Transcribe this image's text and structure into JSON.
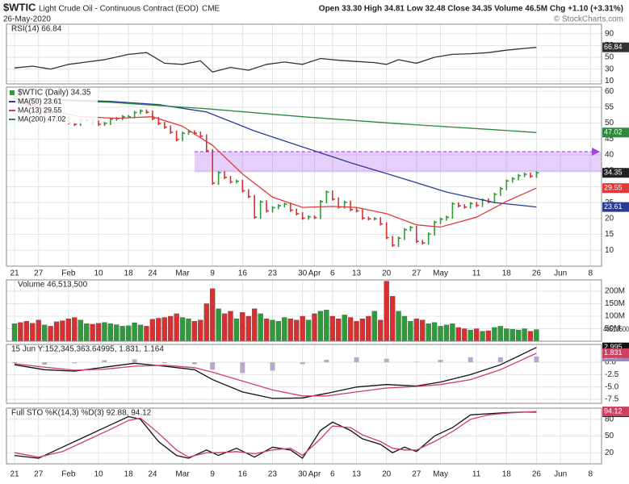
{
  "header": {
    "symbol": "$WTIC",
    "name": "Light Crude Oil - Continuous Contract (EOD)",
    "exchange": "CME",
    "date": "26-May-2020",
    "quote": "Open 33.30 High 34.81 Low 32.48 Close 34.35 Volume 46.5M Chg +1.10 (+3.31%)",
    "credit": "© StockCharts.com"
  },
  "chart_data": [
    {
      "type": "line",
      "title": "RSI(14) 66.84",
      "ylim": [
        5,
        106
      ],
      "yticks": [
        10,
        30,
        50,
        70,
        90
      ],
      "series": [
        {
          "color": "#333333",
          "x": [
            0,
            3,
            6,
            9,
            12,
            15,
            19,
            22,
            25,
            28,
            31,
            33,
            36,
            39,
            42,
            45,
            48,
            51,
            54,
            57,
            60,
            62,
            64,
            67,
            70,
            73,
            76,
            79,
            82,
            85,
            87
          ],
          "values": [
            32,
            35,
            30,
            38,
            42,
            46,
            55,
            58,
            40,
            38,
            44,
            25,
            33,
            28,
            38,
            42,
            38,
            48,
            45,
            43,
            41,
            38,
            46,
            40,
            50,
            55,
            56,
            58,
            62,
            65,
            66.84
          ]
        }
      ]
    },
    {
      "type": "price",
      "title": "$WTIC (Daily) 34.35",
      "ylim": [
        5,
        61.3
      ],
      "yticks": [
        10,
        15,
        20,
        25,
        30,
        35,
        40,
        45,
        50,
        55,
        60
      ],
      "grid": true,
      "colors": {
        "up": "#2e9a3a",
        "down": "#d83030"
      },
      "zone": [
        34.5,
        41
      ],
      "zone_color": "#a040f0",
      "categories": [
        "21",
        null,
        null,
        null,
        "27",
        null,
        null,
        null,
        null,
        "Feb",
        null,
        null,
        null,
        null,
        "10",
        null,
        null,
        null,
        null,
        "18",
        null,
        null,
        null,
        "24",
        null,
        null,
        null,
        null,
        "Mar",
        null,
        null,
        null,
        null,
        "9",
        null,
        null,
        null,
        null,
        "16",
        null,
        null,
        null,
        null,
        "23",
        null,
        null,
        null,
        null,
        "30",
        null,
        "Apr",
        null,
        null,
        "6",
        null,
        null,
        null,
        "13",
        null,
        null,
        null,
        null,
        "20",
        null,
        null,
        null,
        null,
        "27",
        null,
        null,
        null,
        "May",
        null,
        null,
        null,
        null,
        null,
        "11",
        null,
        null,
        null,
        null,
        "18",
        null,
        null,
        null,
        null,
        "26",
        null,
        null,
        null,
        "Jun",
        null,
        null,
        null,
        null,
        "8",
        null,
        null
      ],
      "values": [
        58.3,
        56.7,
        55.6,
        54.2,
        53.1,
        53.5,
        53.3,
        52.1,
        51.6,
        50.1,
        49.6,
        50.8,
        50.9,
        50.3,
        49.6,
        49.9,
        51.2,
        51.4,
        52.0,
        52.0,
        53.3,
        53.8,
        53.4,
        51.4,
        49.9,
        48.7,
        47.1,
        44.8,
        46.8,
        47.2,
        46.8,
        45.9,
        41.3,
        31.1,
        34.4,
        32.9,
        31.5,
        31.7,
        28.7,
        26.9,
        20.4,
        25.2,
        22.4,
        23.4,
        24.0,
        24.5,
        22.6,
        21.5,
        20.1,
        20.5,
        20.3,
        25.3,
        28.3,
        26.1,
        23.6,
        25.1,
        22.8,
        22.4,
        20.1,
        19.9,
        19.9,
        18.3,
        14.0,
        11.6,
        13.8,
        16.5,
        17.2,
        12.8,
        12.3,
        15.1,
        18.8,
        19.8,
        20.4,
        24.6,
        24.0,
        23.6,
        24.7,
        24.1,
        25.8,
        25.3,
        27.6,
        29.4,
        31.8,
        32.5,
        33.5,
        33.9,
        33.25,
        34.35,
        null,
        null,
        null,
        null,
        null,
        null,
        null,
        null,
        null,
        null,
        null
      ],
      "series": [
        {
          "name": "MA(50) 23.61",
          "color": "#2a3a9a",
          "x": [
            0,
            8,
            16,
            24,
            32,
            40,
            48,
            56,
            64,
            72,
            80,
            87
          ],
          "values": [
            57.5,
            57.3,
            56.8,
            55.8,
            53.5,
            47.5,
            42.5,
            37.5,
            33,
            28.3,
            25,
            23.61
          ]
        },
        {
          "name": "MA(13) 29.55",
          "color": "#e03a3a",
          "x": [
            0,
            6,
            11,
            17,
            23,
            28,
            33,
            38,
            43,
            48,
            53,
            57,
            62,
            67,
            71,
            77,
            82,
            87
          ],
          "values": [
            57,
            54,
            52,
            51.5,
            52,
            49,
            43,
            34,
            26.7,
            23.5,
            23.8,
            23.5,
            21.5,
            18,
            17.3,
            20.4,
            25.4,
            29.55
          ]
        },
        {
          "name": "MA(200) 47.02",
          "color": "#2a8a3a",
          "x": [
            0,
            16,
            32,
            48,
            64,
            80,
            87
          ],
          "values": [
            57.7,
            56.5,
            54.5,
            52,
            49.8,
            47.9,
            47.02
          ]
        }
      ]
    },
    {
      "type": "bar",
      "title": "Volume 46,513,500",
      "ylim": [
        0,
        245000000.0
      ],
      "yticks": [
        {
          "value": 50000000.0,
          "label": "50M"
        },
        {
          "value": 100000000.0,
          "label": "100M"
        },
        {
          "value": 150000000.0,
          "label": "150M"
        },
        {
          "value": 200000000.0,
          "label": "200M"
        }
      ],
      "values": [
        70000000.0,
        75000000.0,
        80000000.0,
        72000000.0,
        85000000.0,
        65000000.0,
        60000000.0,
        78000000.0,
        82000000.0,
        90000000.0,
        95000000.0,
        85000000.0,
        70000000.0,
        68000000.0,
        72000000.0,
        75000000.0,
        70000000.0,
        66000000.0,
        60000000.0,
        62000000.0,
        74000000.0,
        65000000.0,
        60000000.0,
        88000000.0,
        92000000.0,
        95000000.0,
        100000000.0,
        110000000.0,
        95000000.0,
        90000000.0,
        80000000.0,
        85000000.0,
        150000000.0,
        210000000.0,
        130000000.0,
        110000000.0,
        120000000.0,
        90000000.0,
        115000000.0,
        100000000.0,
        130000000.0,
        110000000.0,
        90000000.0,
        85000000.0,
        80000000.0,
        95000000.0,
        90000000.0,
        85000000.0,
        100000000.0,
        85000000.0,
        110000000.0,
        120000000.0,
        125000000.0,
        100000000.0,
        90000000.0,
        105000000.0,
        95000000.0,
        80000000.0,
        90000000.0,
        100000000.0,
        120000000.0,
        85000000.0,
        240000000.0,
        180000000.0,
        120000000.0,
        100000000.0,
        80000000.0,
        90000000.0,
        85000000.0,
        70000000.0,
        75000000.0,
        60000000.0,
        65000000.0,
        70000000.0,
        55000000.0,
        50000000.0,
        45000000.0,
        50000000.0,
        40000000.0,
        42000000.0,
        55000000.0,
        60000000.0,
        50000000.0,
        48000000.0,
        45000000.0,
        50000000.0,
        40000000.0,
        46513500,
        null,
        null,
        null,
        null,
        null,
        null,
        null,
        null,
        null,
        null,
        null
      ]
    },
    {
      "type": "line",
      "title": "15 Jun Y:152,345,363.64995, 1.831, 1.164",
      "ylim": [
        -8.3,
        3.6
      ],
      "yticks": [
        -7.5,
        {
          "value": -5,
          "label": "-5.0"
        },
        -2.5,
        {
          "value": 0,
          "label": "0.0"
        }
      ],
      "series": [
        {
          "style": "histogram",
          "color": "#b8a8cc",
          "x": [
            0,
            5,
            10,
            15,
            20,
            25,
            30,
            33,
            38,
            43,
            48,
            52,
            57,
            62,
            67,
            71,
            76,
            81,
            87
          ],
          "values": [
            -0.2,
            -0.5,
            -0.2,
            0.4,
            0.6,
            -0.2,
            -0.4,
            -1.5,
            -2.2,
            -1.7,
            -0.4,
            0.5,
            1.0,
            0.7,
            0.1,
            0.5,
            1.0,
            1.0,
            1.164
          ]
        },
        {
          "color": "#111111",
          "x": [
            0,
            5,
            10,
            15,
            20,
            25,
            30,
            33,
            38,
            43,
            48,
            52,
            57,
            62,
            67,
            71,
            76,
            81,
            87
          ],
          "values": [
            -0.5,
            -1.5,
            -1.8,
            -1.0,
            -0.2,
            -0.8,
            -1.5,
            -3.5,
            -6,
            -7.3,
            -7.2,
            -6.3,
            -5,
            -4.5,
            -4.8,
            -4,
            -2.5,
            -0.5,
            2.995
          ]
        },
        {
          "color": "#d04060",
          "x": [
            0,
            5,
            10,
            15,
            20,
            25,
            30,
            33,
            38,
            43,
            48,
            52,
            57,
            62,
            67,
            71,
            76,
            81,
            87
          ],
          "values": [
            -0.3,
            -1.0,
            -1.6,
            -1.4,
            -0.8,
            -0.6,
            -1.1,
            -2.0,
            -3.8,
            -5.6,
            -6.8,
            -6.8,
            -6.0,
            -5.2,
            -4.9,
            -4.5,
            -3.5,
            -1.5,
            1.831
          ]
        }
      ]
    },
    {
      "type": "line",
      "title": "Full STO %K(14,3) %D(3) 92.88, 94.12",
      "ylim": [
        0,
        100
      ],
      "yticks": [
        20,
        50,
        80
      ],
      "series": [
        {
          "color": "#111111",
          "x": [
            0,
            4,
            8,
            12,
            16,
            19,
            21,
            24,
            27,
            29,
            32,
            34,
            37,
            40,
            43,
            46,
            48,
            51,
            53,
            56,
            58,
            61,
            63,
            65,
            67,
            70,
            73,
            76,
            79,
            82,
            85,
            87
          ],
          "values": [
            15,
            10,
            30,
            50,
            70,
            85,
            80,
            40,
            15,
            10,
            25,
            15,
            28,
            12,
            30,
            25,
            10,
            60,
            75,
            60,
            45,
            35,
            20,
            30,
            22,
            50,
            65,
            88,
            90,
            92,
            93,
            92.88
          ]
        },
        {
          "color": "#d04060",
          "x": [
            0,
            4,
            8,
            12,
            16,
            19,
            21,
            24,
            27,
            29,
            32,
            34,
            37,
            40,
            43,
            46,
            48,
            51,
            53,
            56,
            58,
            61,
            63,
            65,
            67,
            70,
            73,
            76,
            79,
            82,
            85,
            87
          ],
          "values": [
            20,
            12,
            22,
            42,
            62,
            78,
            82,
            55,
            25,
            12,
            20,
            20,
            22,
            18,
            25,
            28,
            15,
            45,
            68,
            65,
            52,
            40,
            28,
            25,
            25,
            40,
            58,
            80,
            88,
            91,
            93,
            94.12
          ]
        }
      ]
    }
  ]
}
